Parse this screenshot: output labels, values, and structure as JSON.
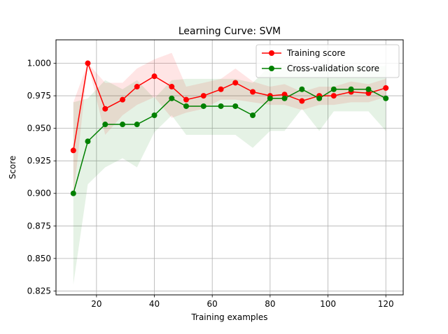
{
  "chart_data": {
    "type": "line",
    "title": "Learning Curve: SVM",
    "xlabel": "Training examples",
    "ylabel": "Score",
    "xlim": [
      6,
      126
    ],
    "ylim": [
      0.822,
      1.018
    ],
    "grid": true,
    "legend_position": "top-right",
    "x_ticks": [
      20,
      40,
      60,
      80,
      100,
      120
    ],
    "y_ticks": [
      0.825,
      0.85,
      0.875,
      0.9,
      0.925,
      0.95,
      0.975,
      1.0
    ],
    "x_tick_labels": [
      "20",
      "40",
      "60",
      "80",
      "100",
      "120"
    ],
    "y_tick_labels": [
      "0.825",
      "0.850",
      "0.875",
      "0.900",
      "0.925",
      "0.950",
      "0.975",
      "1.000"
    ],
    "x": [
      12,
      17,
      23,
      29,
      34,
      40,
      46,
      51,
      57,
      63,
      68,
      74,
      80,
      85,
      91,
      97,
      102,
      108,
      114,
      120
    ],
    "series": [
      {
        "name": "Training score",
        "color": "#ff0000",
        "values": [
          0.933,
          1.0,
          0.965,
          0.972,
          0.982,
          0.99,
          0.982,
          0.972,
          0.975,
          0.98,
          0.985,
          0.978,
          0.975,
          0.976,
          0.971,
          0.975,
          0.975,
          0.978,
          0.977,
          0.981
        ],
        "band_low": [
          0.896,
          1.0,
          0.945,
          0.96,
          0.968,
          0.974,
          0.958,
          0.962,
          0.965,
          0.972,
          0.972,
          0.97,
          0.968,
          0.968,
          0.964,
          0.968,
          0.968,
          0.97,
          0.97,
          0.974
        ],
        "band_high": [
          0.97,
          1.0,
          0.985,
          0.985,
          0.996,
          1.003,
          1.008,
          0.982,
          0.985,
          0.988,
          0.996,
          0.986,
          0.982,
          0.984,
          0.978,
          0.982,
          0.982,
          0.986,
          0.984,
          0.988
        ]
      },
      {
        "name": "Cross-validation score",
        "color": "#008000",
        "values": [
          0.9,
          0.94,
          0.953,
          0.953,
          0.953,
          0.96,
          0.973,
          0.967,
          0.967,
          0.967,
          0.967,
          0.96,
          0.973,
          0.973,
          0.98,
          0.973,
          0.98,
          0.98,
          0.98,
          0.973
        ],
        "band_low": [
          0.83,
          0.907,
          0.92,
          0.927,
          0.92,
          0.947,
          0.96,
          0.945,
          0.945,
          0.945,
          0.945,
          0.935,
          0.948,
          0.948,
          0.965,
          0.948,
          0.963,
          0.963,
          0.963,
          0.948
        ],
        "band_high": [
          0.97,
          0.973,
          0.987,
          0.98,
          0.987,
          0.973,
          0.987,
          0.988,
          0.988,
          0.988,
          0.988,
          0.985,
          0.998,
          0.998,
          0.995,
          0.998,
          0.997,
          0.997,
          0.997,
          0.998
        ]
      }
    ]
  }
}
